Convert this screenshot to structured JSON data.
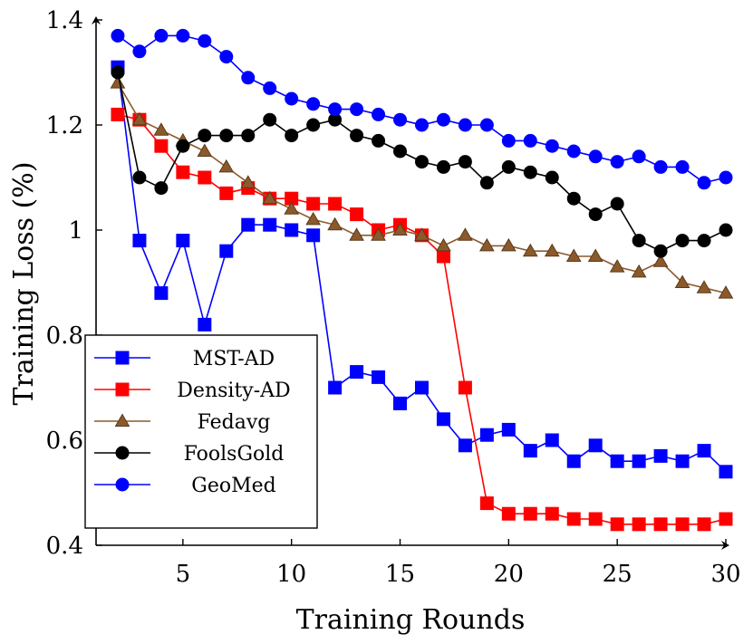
{
  "chart_data": {
    "type": "line",
    "title": "",
    "xlabel": "Training Rounds",
    "ylabel": "Training Loss (%)",
    "xlim": [
      1,
      30
    ],
    "ylim": [
      0.4,
      1.4
    ],
    "xticks": [
      5,
      10,
      15,
      20,
      25,
      30
    ],
    "yticks": [
      0.4,
      0.6,
      0.8,
      1,
      1.2,
      1.4
    ],
    "xtick_labels": [
      "5",
      "10",
      "15",
      "20",
      "25",
      "30"
    ],
    "ytick_labels": [
      "0.4",
      "0.6",
      "0.8",
      "1",
      "1.2",
      "1.4"
    ],
    "grid": false,
    "legend_position": "lower-left",
    "x": [
      2,
      3,
      4,
      5,
      6,
      7,
      8,
      9,
      10,
      11,
      12,
      13,
      14,
      15,
      16,
      17,
      18,
      19,
      20,
      21,
      22,
      23,
      24,
      25,
      26,
      27,
      28,
      29,
      30
    ],
    "series": [
      {
        "name": "MST-AD",
        "color": "#0000ff",
        "marker": "square",
        "values": [
          1.31,
          0.98,
          0.88,
          0.98,
          0.82,
          0.96,
          1.01,
          1.01,
          1.0,
          0.99,
          0.7,
          0.73,
          0.72,
          0.67,
          0.7,
          0.64,
          0.59,
          0.61,
          0.62,
          0.58,
          0.6,
          0.56,
          0.59,
          0.56,
          0.56,
          0.57,
          0.56,
          0.58,
          0.54
        ]
      },
      {
        "name": "Density-AD",
        "color": "#ff0000",
        "marker": "square",
        "values": [
          1.22,
          1.21,
          1.16,
          1.11,
          1.1,
          1.07,
          1.08,
          1.06,
          1.06,
          1.05,
          1.05,
          1.03,
          1.0,
          1.01,
          0.99,
          0.95,
          0.7,
          0.48,
          0.46,
          0.46,
          0.46,
          0.45,
          0.45,
          0.44,
          0.44,
          0.44,
          0.44,
          0.44,
          0.45
        ]
      },
      {
        "name": "Fedavg",
        "color": "#8b5a2b",
        "marker": "triangle",
        "values": [
          1.28,
          1.21,
          1.19,
          1.17,
          1.15,
          1.12,
          1.09,
          1.06,
          1.04,
          1.02,
          1.01,
          0.99,
          0.99,
          1.0,
          0.99,
          0.97,
          0.99,
          0.97,
          0.97,
          0.96,
          0.96,
          0.95,
          0.95,
          0.93,
          0.92,
          0.94,
          0.9,
          0.89,
          0.88
        ]
      },
      {
        "name": "FoolsGold",
        "color": "#000000",
        "marker": "circle",
        "values": [
          1.3,
          1.1,
          1.08,
          1.16,
          1.18,
          1.18,
          1.18,
          1.21,
          1.18,
          1.2,
          1.21,
          1.18,
          1.17,
          1.15,
          1.13,
          1.12,
          1.13,
          1.09,
          1.12,
          1.11,
          1.1,
          1.06,
          1.03,
          1.05,
          0.98,
          0.96,
          0.98,
          0.98,
          1.0
        ]
      },
      {
        "name": "GeoMed",
        "color": "#0000ff",
        "marker": "circle",
        "values": [
          1.37,
          1.34,
          1.37,
          1.37,
          1.36,
          1.33,
          1.29,
          1.27,
          1.25,
          1.24,
          1.23,
          1.23,
          1.22,
          1.21,
          1.2,
          1.21,
          1.2,
          1.2,
          1.17,
          1.17,
          1.16,
          1.15,
          1.14,
          1.13,
          1.14,
          1.12,
          1.12,
          1.09,
          1.1
        ]
      }
    ]
  }
}
